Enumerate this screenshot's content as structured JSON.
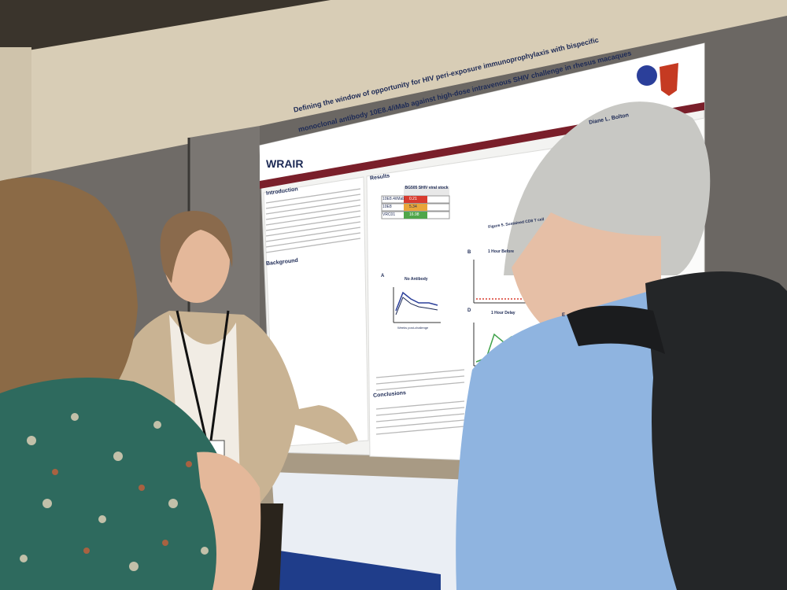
{
  "poster": {
    "title_line1": "Defining the window of opportunity for HIV peri-exposure immunoprophylaxis with bispecific",
    "title_line2": "monoclonal antibody 10E8.4/iMab against high-dose intravenous SHIV challenge in rhesus macaques",
    "logo": "WRAIR",
    "authors_tail": "Diane L. Bolton",
    "sections": {
      "introduction": "Introduction",
      "background": "Background",
      "results": "Results",
      "conclusions": "Conclusions"
    },
    "table": {
      "header": "BG505 SHIV viral stock",
      "rows": [
        {
          "label": "10E8.4/iMab",
          "value": "0.21"
        },
        {
          "label": "10E8",
          "value": "5.34"
        },
        {
          "label": "VRC01",
          "value": "16.98"
        }
      ]
    },
    "figure_labels": {
      "no_antibody": "No Antibody",
      "one_hour_before": "1 Hour Before",
      "one_hour_delay": "1 Hour Delay",
      "weeks_post_challenge": "Weeks post-challenge",
      "sustained": "Figure 5. Sustained CD8 T cell",
      "panel_b": "B",
      "panel_d": "D",
      "panel_e": "E",
      "panel_a": "A"
    }
  },
  "colors": {
    "wall": "#b9ad98",
    "panel": "#6e6a66",
    "poster_bg": "#f4f4f2",
    "poster_title": "#1d2a55",
    "table_red": "#d83b2f",
    "table_orange": "#e8a53a",
    "table_green": "#4fa64a"
  }
}
